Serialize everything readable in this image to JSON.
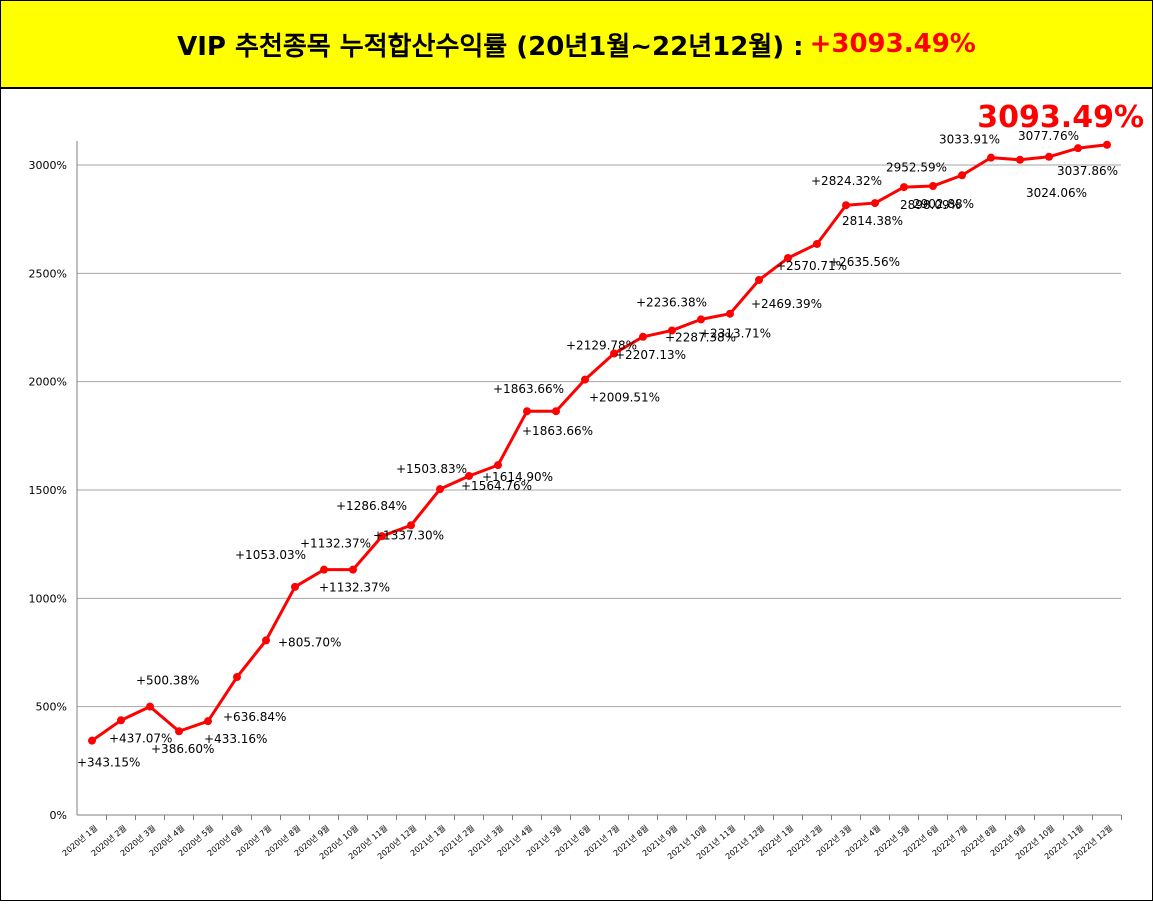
{
  "header": {
    "title": "VIP 추천종목 누적합산수익률 (20년1월~22년12월) :",
    "highlight": "+3093.49%"
  },
  "colors": {
    "line": "#ff0000",
    "title_bg": "#ffff00",
    "highlight": "#ff0000",
    "grid": "#a6a6a6"
  },
  "chart_data": {
    "type": "line",
    "big_label": "3093.49%",
    "ylim": [
      0,
      3100
    ],
    "y_ticks": [
      0,
      500,
      1000,
      1500,
      2000,
      2500,
      3000
    ],
    "y_tick_labels": [
      "0%",
      "500%",
      "1000%",
      "1500%",
      "2000%",
      "2500%",
      "3000%"
    ],
    "grid": true,
    "categories": [
      "2020년 1월",
      "2020년 2월",
      "2020년 3월",
      "2020년 4월",
      "2020년 5월",
      "2020년 6월",
      "2020년 7월",
      "2020년 8월",
      "2020년 9월",
      "2020년 10월",
      "2020년 11월",
      "2020년 12월",
      "2021년 1월",
      "2021년 2월",
      "2021년 3월",
      "2021년 4월",
      "2021년 5월",
      "2021년 6월",
      "2021년 7월",
      "2021년 8월",
      "2021년 9월",
      "2021년 10월",
      "2021년 11월",
      "2021년 12월",
      "2022년 1월",
      "2022년 2월",
      "2022년 3월",
      "2022년 4월",
      "2022년 5월",
      "2022년 6월",
      "2022년 7월",
      "2022년 8월",
      "2022년 9월",
      "2022년 10월",
      "2022년 11월",
      "2022년 12월"
    ],
    "values": [
      343.15,
      437.07,
      500.38,
      386.6,
      433.16,
      636.84,
      805.7,
      1053.03,
      1132.37,
      1132.37,
      1286.84,
      1337.3,
      1503.83,
      1564.76,
      1614.9,
      1863.66,
      1863.66,
      2009.51,
      2129.78,
      2207.13,
      2236.38,
      2287.38,
      2313.71,
      2469.39,
      2570.71,
      2635.56,
      2814.38,
      2824.32,
      2898.09,
      2902.88,
      2952.59,
      3033.91,
      3024.06,
      3037.86,
      3077.76,
      3093.49
    ],
    "data_labels": [
      "+343.15%",
      "+437.07%",
      "+500.38%",
      "+386.60%",
      "+433.16%",
      "+636.84%",
      "+805.70%",
      "+1053.03%",
      "+1132.37%",
      "+1132.37%",
      "+1286.84%",
      "+1337.30%",
      "+1503.83%",
      "+1564.76%",
      "+1614.90%",
      "+1863.66%",
      "+1863.66%",
      "+2009.51%",
      "+2129.78%",
      "+2207.13%",
      "+2236.38%",
      "+2287.38%",
      "+2313.71%",
      "+2469.39%",
      "+2570.71%",
      "+2635.56%",
      "2814.38%",
      "+2824.32%",
      "2898.09%",
      "2902.88%",
      "2952.59%",
      "3033.91%",
      "3024.06%",
      "3037.86%",
      "3077.76%",
      ""
    ]
  }
}
